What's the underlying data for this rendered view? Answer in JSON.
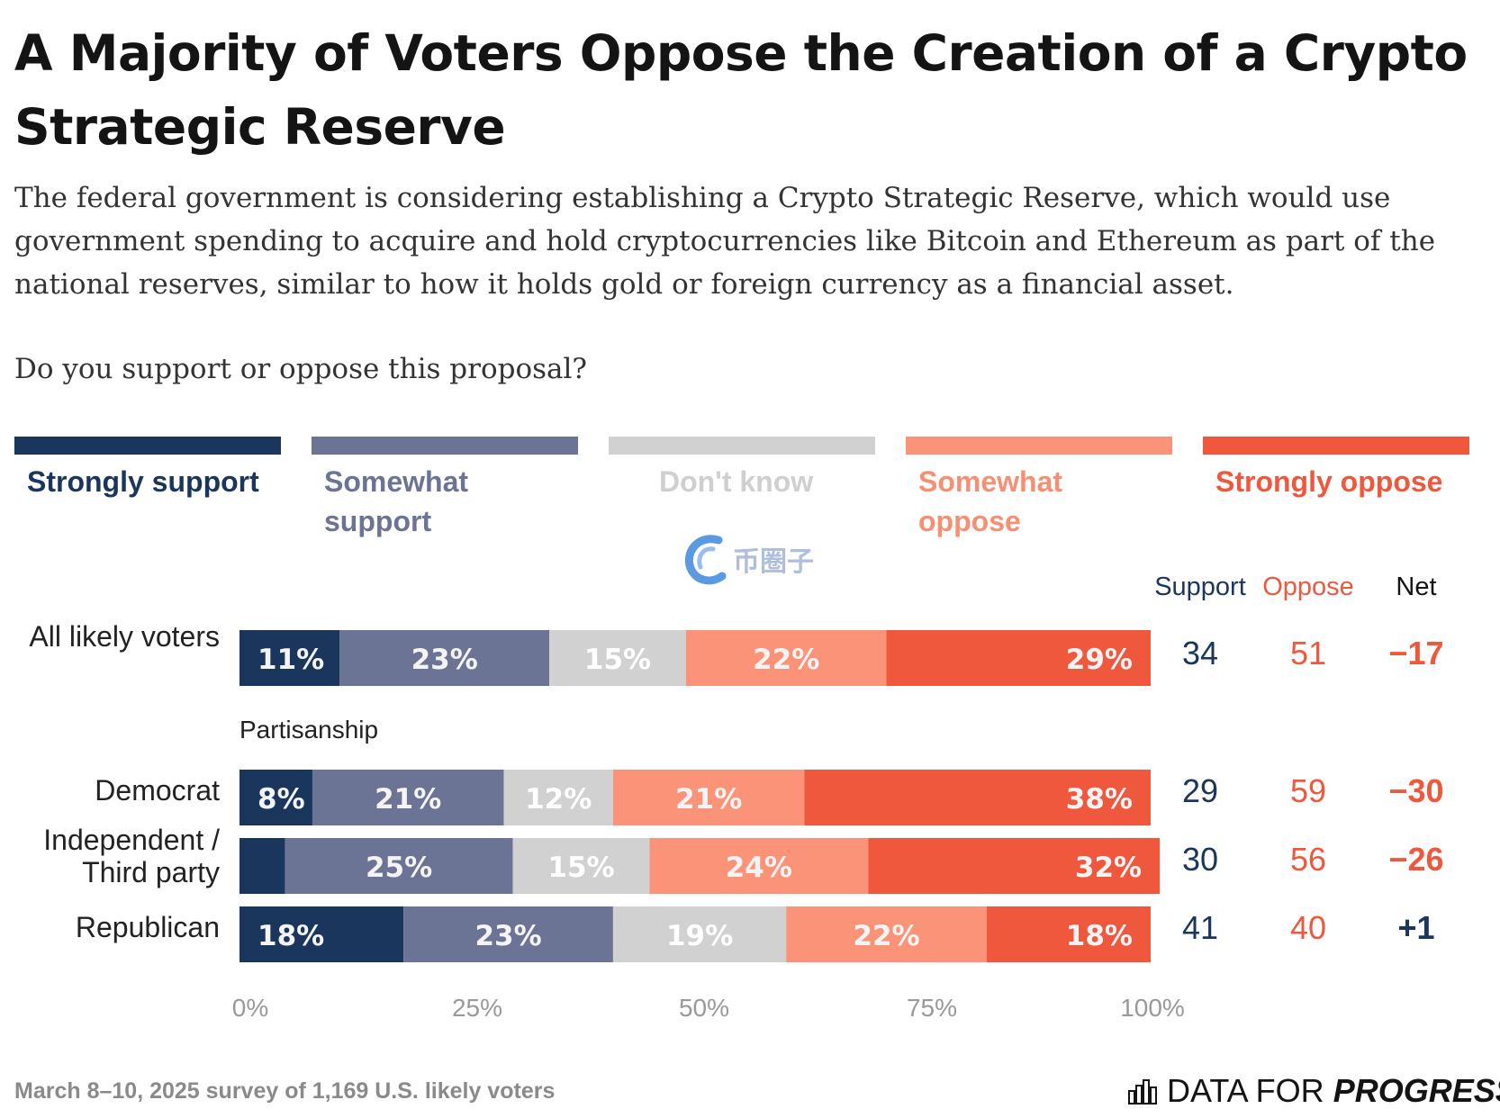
{
  "header": {
    "title": "A Majority of Voters Oppose the Creation of a Crypto Strategic Reserve",
    "subtitle": "The federal government is considering establishing a Crypto Strategic Reserve, which would use government spending to acquire and hold cryptocurrencies like Bitcoin and Ethereum as part of the national reserves, similar to how it holds gold or foreign currency as a financial asset.",
    "question": "Do you support or oppose this proposal?"
  },
  "legend": [
    {
      "label": "Strongly support",
      "color": "#1b365d",
      "text_color": "#1b365d"
    },
    {
      "label": "Somewhat support",
      "color": "#6b7494",
      "text_color": "#6b7494"
    },
    {
      "label": "Don't know",
      "color": "#d1d1d1",
      "text_color": "#cfcfcf"
    },
    {
      "label": "Somewhat oppose",
      "color": "#fb9378",
      "text_color": "#f98f72"
    },
    {
      "label": "Strongly oppose",
      "color": "#ef583c",
      "text_color": "#ef583c"
    }
  ],
  "columns": {
    "support": "Support",
    "oppose": "Oppose",
    "net": "Net"
  },
  "section_label": "Partisanship",
  "footer": {
    "note": "March 8–10, 2025 survey of 1,169 U.S. likely voters",
    "brand_regular": "DATA FOR",
    "brand_bold": "PROGRESS"
  },
  "watermark": "币圈子",
  "chart_data": {
    "type": "bar",
    "orientation": "horizontal",
    "stacked": true,
    "xlim": [
      0,
      100
    ],
    "x_ticks": [
      "0%",
      "25%",
      "50%",
      "75%",
      "100%"
    ],
    "segments": [
      "Strongly support",
      "Somewhat support",
      "Don't know",
      "Somewhat oppose",
      "Strongly oppose"
    ],
    "colors": [
      "#1b365d",
      "#6b7494",
      "#d1d1d1",
      "#fb9378",
      "#ef583c"
    ],
    "rows": [
      {
        "label": "All likely voters",
        "values": [
          11,
          23,
          15,
          22,
          29
        ],
        "value_labels": [
          "11%",
          "23%",
          "15%",
          "22%",
          "29%"
        ],
        "support": "34",
        "oppose": "51",
        "net": "−17"
      },
      {
        "label": "Democrat",
        "values": [
          8,
          21,
          12,
          21,
          38
        ],
        "value_labels": [
          "8%",
          "21%",
          "12%",
          "21%",
          "38%"
        ],
        "support": "29",
        "oppose": "59",
        "net": "−30"
      },
      {
        "label": "Independent / Third party",
        "values": [
          5,
          25,
          15,
          24,
          32
        ],
        "value_labels": [
          "",
          "25%",
          "15%",
          "24%",
          "32%"
        ],
        "support": "30",
        "oppose": "56",
        "net": "−26"
      },
      {
        "label": "Republican",
        "values": [
          18,
          23,
          19,
          22,
          18
        ],
        "value_labels": [
          "18%",
          "23%",
          "19%",
          "22%",
          "18%"
        ],
        "support": "41",
        "oppose": "40",
        "net": "+1"
      }
    ]
  }
}
